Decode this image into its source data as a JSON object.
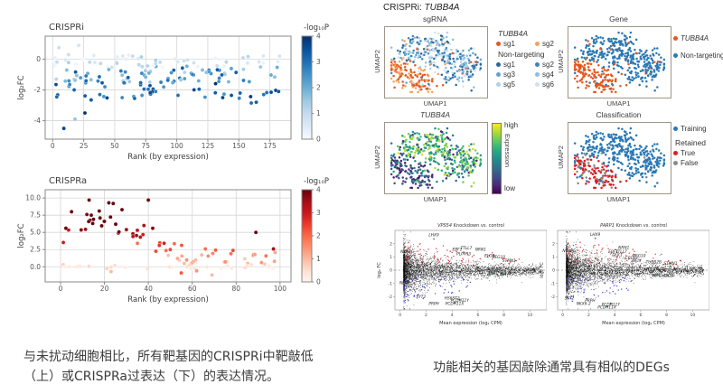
{
  "figure": {
    "left_caption": "与未扰动细胞相比，所有靶基因的CRISPRi中靶敲低（上）或CRISPRa过表达（下）的表达情况。",
    "right_caption": "功能相关的基因敲除通常具有相似的DEGs",
    "right_header_prefix": "CRISPRi: ",
    "right_header_gene": "TUBB4A"
  },
  "colors": {
    "blues": [
      "#f7fbff",
      "#deebf7",
      "#c6dbef",
      "#9ecae1",
      "#6baed6",
      "#4292c6",
      "#2171b5",
      "#08519c",
      "#08306b"
    ],
    "reds": [
      "#fff5f0",
      "#fee0d2",
      "#fcbba1",
      "#fc9272",
      "#fb6a4a",
      "#ef3b2c",
      "#cb181d",
      "#a50f15",
      "#67000d"
    ],
    "viridis": [
      "#440154",
      "#482878",
      "#3e4989",
      "#31688e",
      "#26828e",
      "#1f9e89",
      "#35b779",
      "#6ece58",
      "#b5de2b",
      "#fde725"
    ],
    "orange": "#e4581f",
    "blue": "#2878b5",
    "red": "#e41a1c",
    "gray": "#8a8a8a",
    "green": "#2e8b3a",
    "up_red": "#e03030",
    "down_blue": "#4646dd",
    "background_point": "#111111"
  },
  "chart_data": [
    {
      "id": "crispri_rank",
      "type": "scatter",
      "title": "CRISPRi",
      "xlabel": "Rank (by expression)",
      "ylabel": "log₂FC",
      "xticks": [
        0,
        25,
        50,
        75,
        100,
        125,
        150,
        175
      ],
      "yticks": [
        0,
        -2,
        -4
      ],
      "ytick_labels": [
        "0",
        "-2",
        "-4"
      ],
      "xlim": [
        -6,
        192
      ],
      "ylim": [
        1.5,
        -5.2
      ],
      "grid": true,
      "colorbar": {
        "label": "-log₁₀P",
        "ticks": [
          0,
          1,
          2,
          3,
          4
        ],
        "colormap": "blues"
      },
      "summary": "Each point is one target gene ranked by expression level; y is log2 fold-change of CRISPRi on-target knockdown vs unperturbed cells, colored by -log10 P (0-4, Blues). Most genes fall between 0 and -2.5; strongest knockdowns reach -4.5.",
      "generation": {
        "seed": 11,
        "n": 160,
        "rank_range": [
          1,
          186
        ],
        "bands": [
          {
            "weight": 0.3,
            "fc_range": [
              -0.55,
              0.3
            ],
            "logp_range": [
              0.1,
              1.4
            ]
          },
          {
            "weight": 0.45,
            "fc_range": [
              -1.55,
              -0.45
            ],
            "logp_range": [
              1.2,
              3.4
            ]
          },
          {
            "weight": 0.25,
            "fc_range": [
              -2.6,
              -1.5
            ],
            "logp_range": [
              2.2,
              4.0
            ]
          }
        ]
      },
      "notable_points": [
        [
          2,
          0.1,
          0.3
        ],
        [
          5,
          0.75,
          0.9
        ],
        [
          21,
          0.9,
          0.7
        ],
        [
          9,
          -4.5,
          3.7
        ],
        [
          18,
          -3.9,
          1.6
        ],
        [
          26,
          -3.5,
          4.0
        ],
        [
          31,
          -2.65,
          3.4
        ],
        [
          38,
          -2.3,
          3.0
        ],
        [
          56,
          -2.5,
          2.6
        ],
        [
          66,
          -2.55,
          3.2
        ],
        [
          83,
          -2.1,
          2.8
        ],
        [
          101,
          -2.35,
          3.0
        ],
        [
          118,
          -1.95,
          3.2
        ],
        [
          137,
          -2.5,
          3.7
        ],
        [
          144,
          -2.35,
          3.5
        ],
        [
          151,
          -2.2,
          3.2
        ],
        [
          160,
          -2.85,
          3.1
        ],
        [
          164,
          -2.8,
          3.3
        ],
        [
          170,
          -2.3,
          3.0
        ],
        [
          176,
          -2.15,
          3.5
        ],
        [
          182,
          -2.1,
          3.4
        ]
      ]
    },
    {
      "id": "crispra_rank",
      "type": "scatter",
      "title": "CRISPRa",
      "xlabel": "Rank (by expression)",
      "ylabel": "log₂FC",
      "xticks": [
        0,
        20,
        40,
        60,
        80,
        100
      ],
      "yticks": [
        0,
        2.5,
        5,
        7.5,
        10
      ],
      "ytick_labels": [
        "0.0",
        "2.5",
        "5.0",
        "7.5",
        "10.0"
      ],
      "xlim": [
        -7,
        105
      ],
      "ylim": [
        11.2,
        -2.2
      ],
      "grid": true,
      "colorbar": {
        "label": "-log₁₀P",
        "ticks": [
          0,
          1,
          2,
          3,
          4
        ],
        "colormap": "reds"
      },
      "summary": "CRISPRa overexpression log2FC vs expression rank, colored by -log10 P (0-4, Reds). Lowly expressed genes are activated up to log2FC ~9.7; effect declines toward 0-2 for highly expressed genes; a few genes are mildly repressed (to ~-1.2).",
      "generation": {
        "seed": 22,
        "n": 80,
        "rank_range": [
          1,
          98
        ],
        "trend": [
          [
            1,
            4.8
          ],
          [
            8,
            6.6
          ],
          [
            16,
            7.4
          ],
          [
            24,
            6.2
          ],
          [
            32,
            4.8
          ],
          [
            40,
            4.2
          ],
          [
            48,
            2.6
          ],
          [
            58,
            1.6
          ],
          [
            70,
            1.3
          ],
          [
            85,
            1.0
          ],
          [
            98,
            1.2
          ]
        ],
        "spread": 1.5,
        "fc_clip": [
          -1.2,
          9.8
        ],
        "near_zero_fraction": 0.22
      },
      "notable_points": [
        [
          2,
          0,
          0.2
        ],
        [
          4,
          0,
          0.3
        ],
        [
          7,
          0,
          0.25
        ],
        [
          9,
          0.05,
          0.3
        ],
        [
          5,
          8.0,
          4
        ],
        [
          12,
          7.6,
          3.8
        ],
        [
          13,
          9.7,
          4
        ],
        [
          14,
          7.5,
          4
        ],
        [
          18,
          7.1,
          4
        ],
        [
          20,
          6.6,
          4
        ],
        [
          22,
          9.3,
          4
        ],
        [
          24,
          9.2,
          4
        ],
        [
          28,
          8.3,
          4
        ],
        [
          30,
          5.4,
          3.6
        ],
        [
          33,
          4.4,
          3.2
        ],
        [
          35,
          5.3,
          3.2
        ],
        [
          38,
          6.0,
          3.4
        ],
        [
          40,
          9.7,
          4
        ],
        [
          42,
          5.6,
          3.8
        ],
        [
          45,
          3.1,
          2.6
        ],
        [
          50,
          2.5,
          2.4
        ],
        [
          89,
          5.0,
          4
        ],
        [
          97,
          2.6,
          3.5
        ],
        [
          23,
          -0.7,
          1.0
        ],
        [
          55,
          -0.9,
          2.2
        ],
        [
          62,
          -0.6,
          1.5
        ],
        [
          69,
          -1.2,
          1.0
        ],
        [
          85,
          0.2,
          0.4
        ],
        [
          87,
          0.3,
          0.5
        ],
        [
          93,
          0.4,
          0.8
        ],
        [
          95,
          0.1,
          0.3
        ]
      ]
    },
    {
      "id": "umap_panels",
      "type": "scatter",
      "header": "CRISPRi: TUBB4A",
      "shared_axes": {
        "xlabel": "UMAP1",
        "ylabel": "UMAP2"
      },
      "summary": "Four UMAP panels of the same single-cell embedding: TUBB4A-perturbed cells (orange, lower-left cluster) separate from non-targeting control cells (blue). Panels color the cells by sgRNA identity, by gene, by TUBB4A expression (viridis, low in perturbed cells), and by classifier status.",
      "panels": [
        {
          "id": "sgrna",
          "title": "sgRNA",
          "legend": {
            "groups": [
              {
                "title": "TUBB4A",
                "italic": true,
                "columns": 2,
                "items": [
                  {
                    "label": "sg1",
                    "color": "#e4581f"
                  },
                  {
                    "label": "sg2",
                    "color": "#f5a15a"
                  }
                ]
              },
              {
                "title": "Non-targeting",
                "columns": 2,
                "items": [
                  {
                    "label": "sg1",
                    "color": "#2a679e"
                  },
                  {
                    "label": "sg2",
                    "color": "#3d85bd"
                  },
                  {
                    "label": "sg3",
                    "color": "#62a3cd"
                  },
                  {
                    "label": "sg4",
                    "color": "#8abfdd"
                  },
                  {
                    "label": "sg5",
                    "color": "#aed3e9"
                  },
                  {
                    "label": "sg6",
                    "color": "#cfe3f2"
                  }
                ]
              }
            ]
          }
        },
        {
          "id": "gene",
          "title": "Gene",
          "legend": {
            "groups": [
              {
                "columns": 1,
                "items": [
                  {
                    "label": "TUBB4A",
                    "italic": true,
                    "color": "#e4581f"
                  },
                  {
                    "label": "Non-targeting",
                    "color": "#2878b5"
                  }
                ]
              }
            ]
          }
        },
        {
          "id": "expression",
          "title": "TUBB4A",
          "italic_title": true,
          "colorbar": {
            "label": "Expression",
            "top": "high",
            "bottom": "low",
            "colormap": "viridis"
          }
        },
        {
          "id": "classification",
          "title": "Classification",
          "legend": {
            "groups": [
              {
                "columns": 1,
                "items": [
                  {
                    "label": "Training",
                    "color": "#2878b5"
                  }
                ]
              },
              {
                "title": "Retained",
                "columns": 1,
                "items": [
                  {
                    "label": "True",
                    "color": "#e41a1c"
                  },
                  {
                    "label": "False",
                    "color": "#8a8a8a"
                  }
                ]
              }
            ]
          }
        }
      ],
      "embedding": {
        "seed": 33,
        "crossover_fraction": 0.05,
        "perturbed_cluster": {
          "n": 155,
          "blobs": [
            [
              0.16,
              0.3,
              0.09
            ],
            [
              0.25,
              0.18,
              0.08
            ],
            [
              0.35,
              0.13,
              0.07
            ],
            [
              0.1,
              0.46,
              0.06
            ],
            [
              0.3,
              0.32,
              0.08
            ]
          ]
        },
        "control_cluster": {
          "n": 345,
          "blobs": [
            [
              0.3,
              0.8,
              0.09
            ],
            [
              0.46,
              0.7,
              0.1
            ],
            [
              0.6,
              0.62,
              0.09
            ],
            [
              0.72,
              0.5,
              0.09
            ],
            [
              0.85,
              0.58,
              0.08
            ],
            [
              0.8,
              0.32,
              0.08
            ],
            [
              0.64,
              0.28,
              0.07
            ],
            [
              0.44,
              0.52,
              0.08
            ],
            [
              0.22,
              0.64,
              0.07
            ],
            [
              0.88,
              0.42,
              0.06
            ],
            [
              0.52,
              0.86,
              0.07
            ]
          ]
        }
      },
      "classification_fractions": {
        "perturbed_true": 0.52,
        "perturbed_false": 0.36,
        "control_false": 0.04
      }
    },
    {
      "id": "ma_plots",
      "type": "scatter",
      "xlabel": "Mean expression (log₂ CPM)",
      "ylabel": "log₂ FC",
      "xticks": [
        0,
        2,
        4,
        6,
        8,
        10
      ],
      "yticks": [
        2,
        1,
        0,
        -1,
        -2
      ],
      "xlim": [
        -0.4,
        11.3
      ],
      "ylim": [
        3,
        -3
      ],
      "zero_line": "dashed",
      "summary": "MA plots of differential expression for two knockdowns vs control. Black cloud = all genes, red = up-regulated DEGs, blue = down-regulated DEGs, green = highlighted neuronal genes. Both knockdowns share similar DEGs.",
      "generation": {
        "n_background": 4000,
        "n_up": 70,
        "n_down": 60
      },
      "plots": [
        {
          "gene": "VPS54",
          "title_rest": " Knockdown vs. control",
          "seed": 44,
          "labels": [
            {
              "t": "LHX9",
              "x": 2.6,
              "y": 2.55
            },
            {
              "t": "NCAPG",
              "x": 0.55,
              "y": 1.3
            },
            {
              "t": "EBF1",
              "x": 4.4,
              "y": 1.45
            },
            {
              "t": "TTLL7",
              "x": 5.1,
              "y": 1.58
            },
            {
              "t": "NRN1",
              "x": 6.2,
              "y": 1.45
            },
            {
              "t": "PLPPR3",
              "x": 4.9,
              "y": 1.12
            },
            {
              "t": "ELOB",
              "x": 6.9,
              "y": 1.0
            },
            {
              "t": "PEG10",
              "x": 7.6,
              "y": 0.9
            },
            {
              "t": "STMN1",
              "x": 8.4,
              "y": 0.62
            },
            {
              "t": "NEFL",
              "x": 7.2,
              "y": -0.35
            },
            {
              "t": "NEFM",
              "x": 8.1,
              "y": -0.42
            },
            {
              "t": "NEFH",
              "x": 0.35,
              "y": -1.05
            },
            {
              "t": "SYT2",
              "x": 1.6,
              "y": -2.1
            },
            {
              "t": "HS6ST2",
              "x": 4.0,
              "y": -2.2
            },
            {
              "t": "PCDH11Y",
              "x": 4.6,
              "y": -2.38
            },
            {
              "t": "PRPH",
              "x": 2.6,
              "y": -2.62
            },
            {
              "t": "PCDH11X",
              "x": 4.2,
              "y": -2.62
            }
          ],
          "highlighted_points": [
            [
              2.6,
              2.35
            ],
            [
              8.4,
              0.5
            ],
            [
              7.2,
              -0.22
            ],
            [
              8.1,
              -0.28
            ],
            [
              4.6,
              -2.2
            ],
            [
              4.2,
              -2.45
            ]
          ]
        },
        {
          "gene": "PARP1",
          "title_rest": " Knockdown vs. control",
          "seed": 55,
          "labels": [
            {
              "t": "LHX9",
              "x": 2.5,
              "y": 2.6
            },
            {
              "t": "NCAPG",
              "x": 0.5,
              "y": 1.35
            },
            {
              "t": "NRN1",
              "x": 4.7,
              "y": 1.6
            },
            {
              "t": "EBF1",
              "x": 3.9,
              "y": 1.3
            },
            {
              "t": "TTLL7",
              "x": 4.5,
              "y": 1.3
            },
            {
              "t": "DLK1",
              "x": 4.2,
              "y": 1.05
            },
            {
              "t": "PEG10",
              "x": 5.9,
              "y": 1.0
            },
            {
              "t": "CBLN2",
              "x": 5.3,
              "y": 0.82
            },
            {
              "t": "NFIX",
              "x": 5.7,
              "y": 0.62
            },
            {
              "t": "TUBB2B",
              "x": 7.0,
              "y": 0.52
            },
            {
              "t": "STMN1",
              "x": 8.3,
              "y": 0.42
            },
            {
              "t": "NEFL",
              "x": 7.2,
              "y": -0.5
            },
            {
              "t": "NEFM",
              "x": 8.1,
              "y": -0.55
            },
            {
              "t": "SYT2",
              "x": 0.5,
              "y": -2.2
            },
            {
              "t": "PRPH",
              "x": 2.1,
              "y": -2.38
            },
            {
              "t": "NKX6-2",
              "x": 1.6,
              "y": -2.62
            },
            {
              "t": "PCDH11Y",
              "x": 3.7,
              "y": -2.68
            },
            {
              "t": "PCDH11X",
              "x": 3.4,
              "y": -2.9
            }
          ],
          "highlighted_points": [
            [
              2.5,
              2.4
            ],
            [
              8.3,
              0.3
            ],
            [
              7.2,
              -0.38
            ],
            [
              8.1,
              -0.42
            ],
            [
              3.7,
              -2.5
            ],
            [
              3.4,
              -2.75
            ]
          ]
        }
      ]
    }
  ]
}
